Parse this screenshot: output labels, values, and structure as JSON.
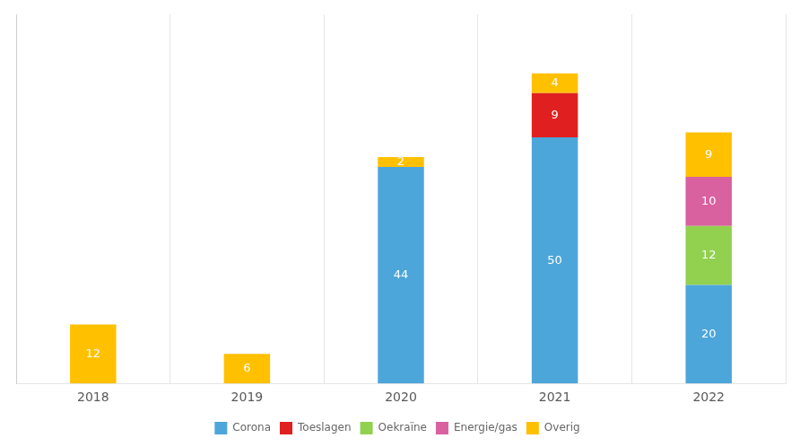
{
  "chart_data": {
    "type": "bar",
    "stacked": true,
    "categories": [
      "2018",
      "2019",
      "2020",
      "2021",
      "2022"
    ],
    "series": [
      {
        "name": "Corona",
        "color": "#4da6d9",
        "values": [
          0,
          0,
          44,
          50,
          20
        ]
      },
      {
        "name": "Toeslagen",
        "color": "#e02020",
        "values": [
          0,
          0,
          0,
          9,
          0
        ]
      },
      {
        "name": "Oekraïne",
        "color": "#92d050",
        "values": [
          0,
          0,
          0,
          0,
          12
        ]
      },
      {
        "name": "Energie/gas",
        "color": "#d961a0",
        "values": [
          0,
          0,
          0,
          0,
          10
        ]
      },
      {
        "name": "Overig",
        "color": "#ffc000",
        "values": [
          12,
          6,
          2,
          4,
          9
        ]
      }
    ],
    "ylim": [
      0,
      75
    ],
    "yticks": [],
    "tick_labels": "x",
    "grid": "x",
    "legend": "bottom",
    "data_labels": true
  }
}
